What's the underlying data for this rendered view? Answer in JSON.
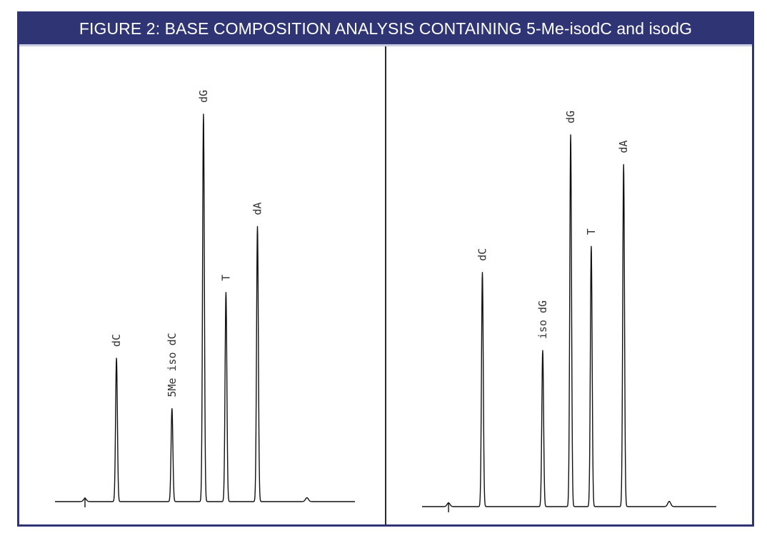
{
  "title": "FIGURE 2: BASE COMPOSITION ANALYSIS CONTAINING 5-Me-isodC and isodG",
  "colors": {
    "frame": "#2f3574",
    "title_text": "#ffffff",
    "trace": "#111111",
    "label": "#333333"
  },
  "chart_data": [
    {
      "type": "line",
      "panel": "left",
      "title": "",
      "xlabel": "",
      "ylabel": "",
      "grid": false,
      "legend": "none",
      "xlim": [
        0,
        100
      ],
      "ylim": [
        0,
        100
      ],
      "peaks": [
        {
          "label": "dC",
          "x": 20.5,
          "height": 37
        },
        {
          "label": "5Me iso dC",
          "x": 39,
          "height": 24
        },
        {
          "label": "dG",
          "x": 49.5,
          "height": 100
        },
        {
          "label": "T",
          "x": 57,
          "height": 54
        },
        {
          "label": "dA",
          "x": 67.5,
          "height": 71
        }
      ],
      "minor_features": [
        {
          "x": 10,
          "height": 0.8
        },
        {
          "x": 84,
          "height": 1.0
        }
      ]
    },
    {
      "type": "line",
      "panel": "right",
      "title": "",
      "xlabel": "",
      "ylabel": "",
      "grid": false,
      "legend": "none",
      "xlim": [
        0,
        100
      ],
      "ylim": [
        0,
        100
      ],
      "peaks": [
        {
          "label": "dC",
          "x": 20.5,
          "height": 63
        },
        {
          "label": "iso dG",
          "x": 41,
          "height": 42
        },
        {
          "label": "dG",
          "x": 50.5,
          "height": 100
        },
        {
          "label": "T",
          "x": 57.5,
          "height": 70
        },
        {
          "label": "dA",
          "x": 68.5,
          "height": 92
        }
      ],
      "minor_features": [
        {
          "x": 9,
          "height": 1.0
        },
        {
          "x": 84,
          "height": 1.4
        }
      ]
    }
  ]
}
